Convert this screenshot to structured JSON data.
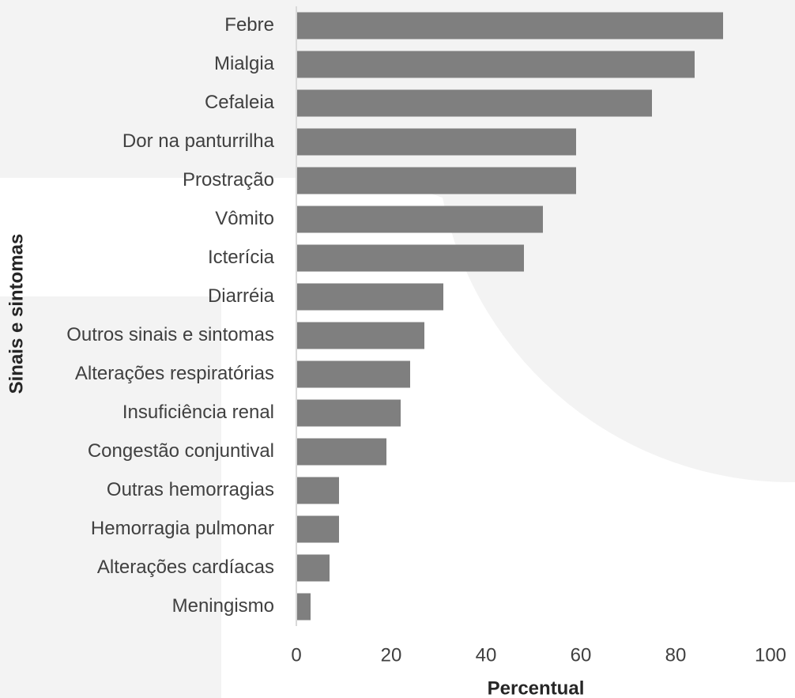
{
  "chart_data": {
    "type": "barh",
    "xlabel": "Percentual",
    "ylabel": "Sinais e sintomas",
    "categories": [
      "Febre",
      "Mialgia",
      "Cefaleia",
      "Dor na panturrilha",
      "Prostração",
      "Vômito",
      "Icterícia",
      "Diarréia",
      "Outros sinais e sintomas",
      "Alterações respiratórias",
      "Insuficiência renal",
      "Congestão conjuntival",
      "Outras hemorragias",
      "Hemorragia pulmonar",
      "Alterações cardíacas",
      "Meningismo"
    ],
    "values": [
      90,
      84,
      75,
      59,
      59,
      52,
      48,
      31,
      27,
      24,
      22,
      19,
      9,
      9,
      7,
      3
    ],
    "color": "#7f7f7f",
    "xlim": [
      0,
      100
    ],
    "xticks": [
      0,
      20,
      40,
      60,
      80,
      100
    ],
    "grid": false
  }
}
